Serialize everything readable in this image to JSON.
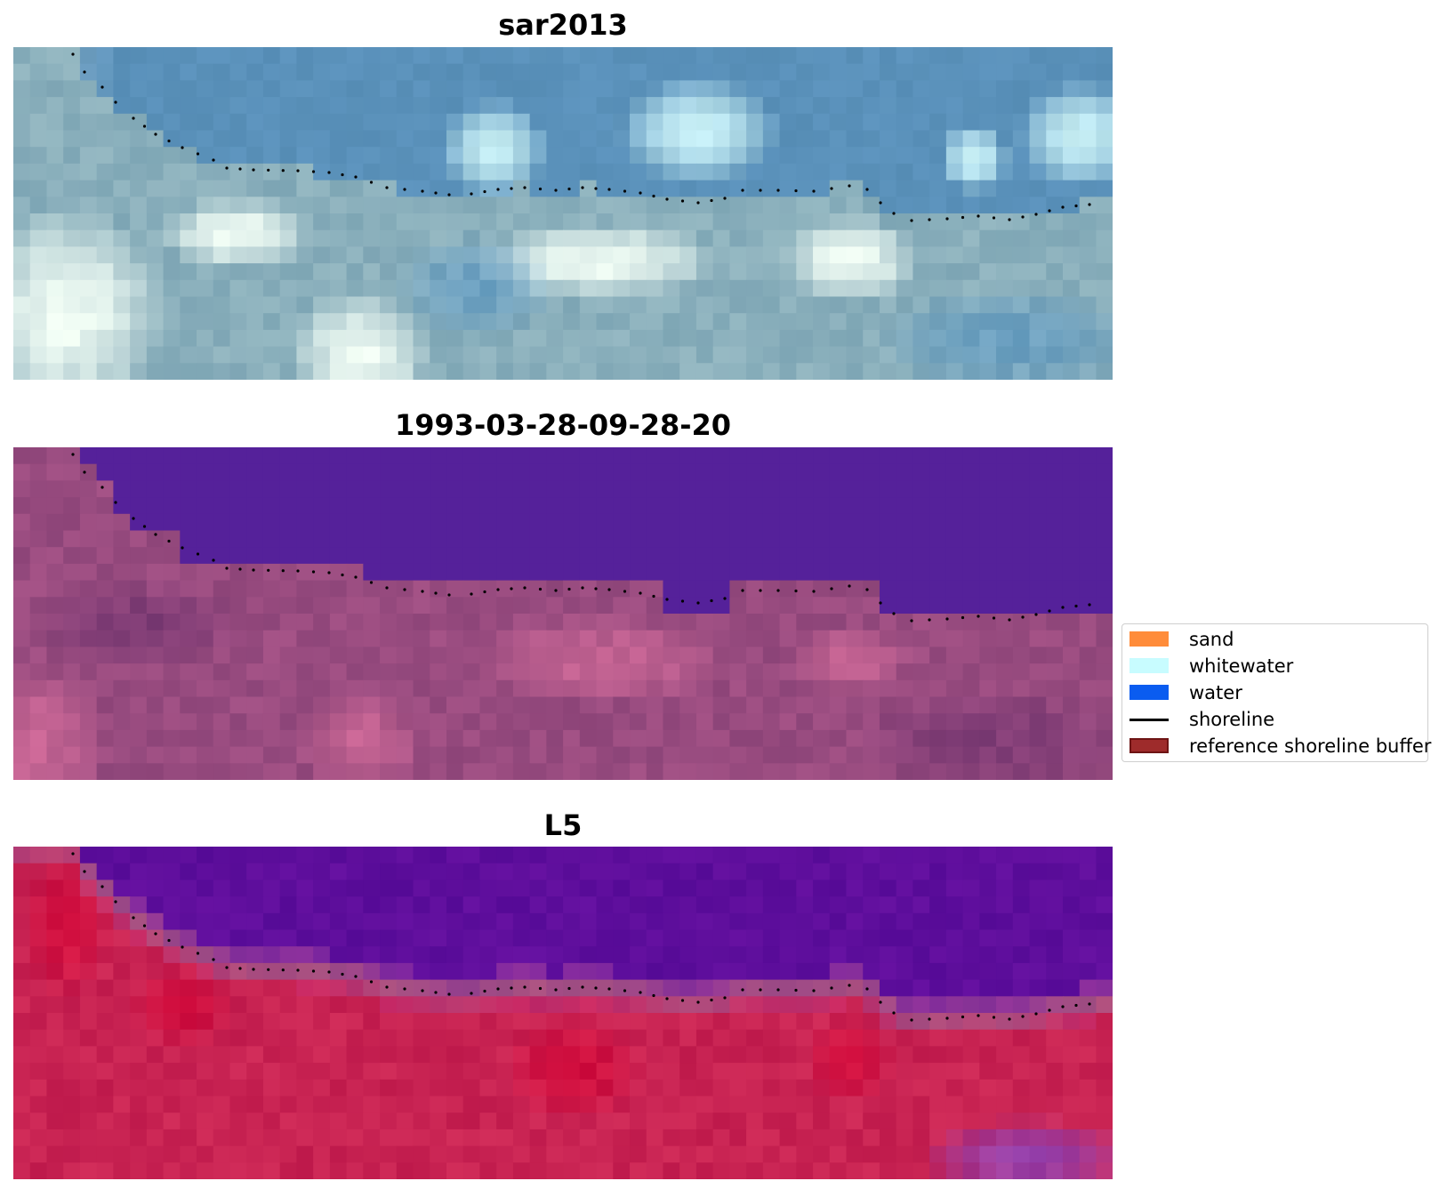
{
  "panels": [
    {
      "title": "sar2013"
    },
    {
      "title": "1993-03-28-09-28-20"
    },
    {
      "title": "L5"
    }
  ],
  "legend": {
    "items": [
      {
        "label": "sand",
        "kind": "patch",
        "color": "#ff8c3a"
      },
      {
        "label": "whitewater",
        "kind": "patch",
        "color": "#c8fcff"
      },
      {
        "label": "water",
        "kind": "patch",
        "color": "#0a5cf0"
      },
      {
        "label": "shoreline",
        "kind": "line",
        "color": "#000000"
      },
      {
        "label": "reference shoreline buffer",
        "kind": "patch",
        "color": "#9e2b2b",
        "edge": "#6e1414"
      }
    ]
  },
  "colors": {
    "classified_water": "#55219a",
    "shoreline_dots": "#000000"
  }
}
